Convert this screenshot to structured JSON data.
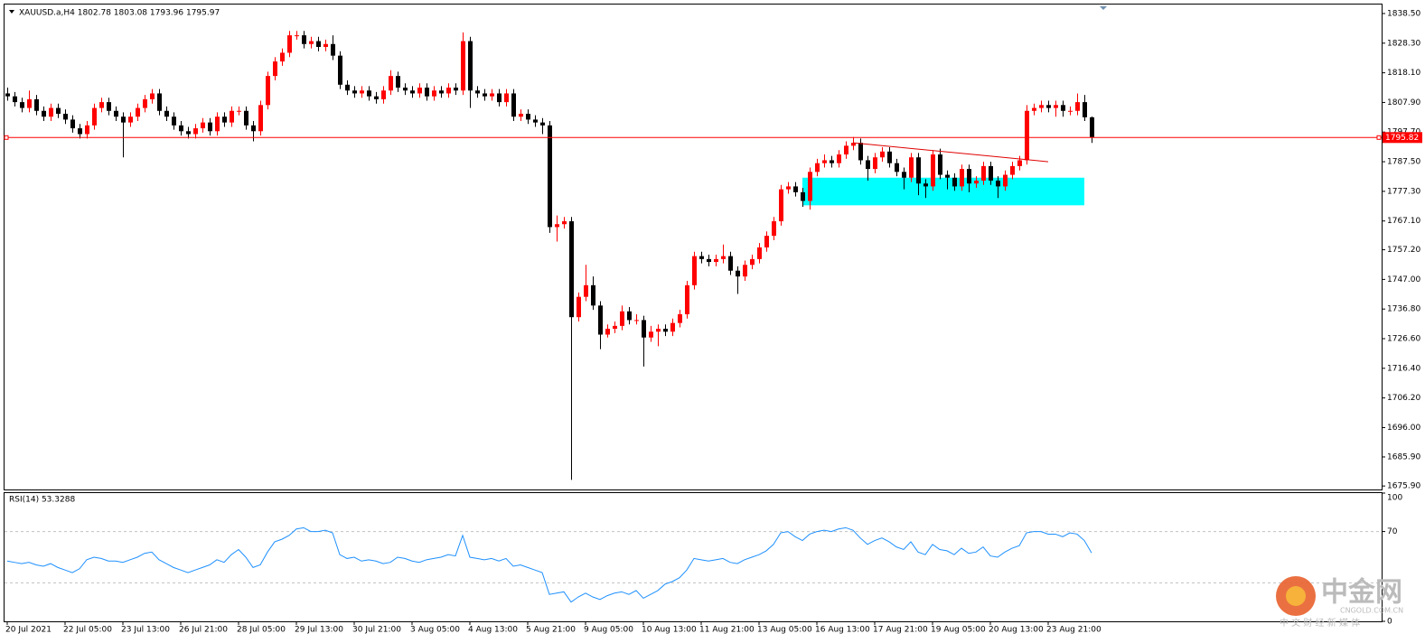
{
  "chart_data": {
    "type": "candlestick",
    "title": "XAUUSD.a,H4  1802.78 1803.08 1793.96 1795.97",
    "up_color": "#ff0000",
    "down_color": "#000000",
    "ylim": [
      1674.7,
      1841.6
    ],
    "yticks": [
      {
        "value": 1838.5,
        "label": "1838.50"
      },
      {
        "value": 1828.3,
        "label": "1828.30"
      },
      {
        "value": 1818.1,
        "label": "1818.10"
      },
      {
        "value": 1807.9,
        "label": "1807.90"
      },
      {
        "value": 1797.7,
        "label": "1797.70"
      },
      {
        "value": 1787.5,
        "label": "1787.50"
      },
      {
        "value": 1777.3,
        "label": "1777.30"
      },
      {
        "value": 1767.1,
        "label": "1767.10"
      },
      {
        "value": 1757.2,
        "label": "1757.20"
      },
      {
        "value": 1747.0,
        "label": "1747.00"
      },
      {
        "value": 1736.8,
        "label": "1736.80"
      },
      {
        "value": 1726.6,
        "label": "1726.60"
      },
      {
        "value": 1716.4,
        "label": "1716.40"
      },
      {
        "value": 1706.2,
        "label": "1706.20"
      },
      {
        "value": 1696.0,
        "label": "1696.00"
      },
      {
        "value": 1685.9,
        "label": "1685.90"
      },
      {
        "value": 1675.9,
        "label": "1675.90"
      }
    ],
    "price_line": {
      "value": 1795.82,
      "label": "1795.82",
      "color": "#ff0000"
    },
    "trendline": {
      "x": [
        117,
        144
      ],
      "y": [
        1794,
        1787.5
      ],
      "color": "#e00000"
    },
    "zone": {
      "x": [
        110,
        149
      ],
      "low": 1772.5,
      "high": 1782,
      "color": "#00ffff"
    },
    "categories": [
      "20 Jul 2021",
      null,
      null,
      null,
      null,
      null,
      null,
      null,
      "22 Jul 05:00",
      null,
      null,
      null,
      null,
      null,
      null,
      null,
      "23 Jul 13:00",
      null,
      null,
      null,
      null,
      null,
      null,
      null,
      "26 Jul 21:00",
      null,
      null,
      null,
      null,
      null,
      null,
      null,
      "28 Jul 05:00",
      null,
      null,
      null,
      null,
      null,
      null,
      null,
      "29 Jul 13:00",
      null,
      null,
      null,
      null,
      null,
      null,
      null,
      "30 Jul 21:00",
      null,
      null,
      null,
      null,
      null,
      null,
      null,
      "3 Aug 05:00",
      null,
      null,
      null,
      null,
      null,
      null,
      null,
      "4 Aug 13:00",
      null,
      null,
      null,
      null,
      null,
      null,
      null,
      "5 Aug 21:00",
      null,
      null,
      null,
      null,
      null,
      null,
      null,
      "9 Aug 05:00",
      null,
      null,
      null,
      null,
      null,
      null,
      null,
      "10 Aug 13:00",
      null,
      null,
      null,
      null,
      null,
      null,
      null,
      "11 Aug 21:00",
      null,
      null,
      null,
      null,
      null,
      null,
      null,
      "13 Aug 05:00",
      null,
      null,
      null,
      null,
      null,
      null,
      null,
      "16 Aug 13:00",
      null,
      null,
      null,
      null,
      null,
      null,
      null,
      "17 Aug 21:00",
      null,
      null,
      null,
      null,
      null,
      null,
      null,
      "19 Aug 05:00",
      null,
      null,
      null,
      null,
      null,
      null,
      null,
      "20 Aug 13:00",
      null,
      null,
      null,
      null,
      null,
      null,
      null,
      "23 Aug 21:00",
      null,
      null,
      null,
      null,
      null,
      null
    ],
    "ohlc": [
      [
        1811,
        1813,
        1808.5,
        1810
      ],
      [
        1810,
        1811.5,
        1806.5,
        1808
      ],
      [
        1808,
        1809.5,
        1804.5,
        1806
      ],
      [
        1806,
        1812,
        1804.5,
        1809
      ],
      [
        1809,
        1810.5,
        1803.5,
        1805
      ],
      [
        1805,
        1806.5,
        1801.5,
        1803
      ],
      [
        1803,
        1807.5,
        1801.5,
        1806
      ],
      [
        1806,
        1807.5,
        1802.5,
        1804
      ],
      [
        1804,
        1805.5,
        1800.5,
        1802
      ],
      [
        1802,
        1803.5,
        1797.5,
        1799
      ],
      [
        1799,
        1800.5,
        1795.5,
        1797
      ],
      [
        1797,
        1801.5,
        1795.5,
        1800
      ],
      [
        1800,
        1807.5,
        1798.5,
        1806
      ],
      [
        1806,
        1809.5,
        1804.5,
        1808
      ],
      [
        1808,
        1809.5,
        1803.5,
        1805
      ],
      [
        1805,
        1806.5,
        1801.5,
        1803
      ],
      [
        1803,
        1804.5,
        1789,
        1801
      ],
      [
        1801,
        1804.5,
        1799.5,
        1803
      ],
      [
        1803,
        1807.5,
        1801.5,
        1806
      ],
      [
        1806,
        1810.5,
        1804.5,
        1809
      ],
      [
        1809,
        1812.5,
        1807.5,
        1811
      ],
      [
        1811,
        1812.5,
        1803.5,
        1805
      ],
      [
        1805,
        1806.5,
        1801.5,
        1803
      ],
      [
        1803,
        1804.5,
        1798.5,
        1800
      ],
      [
        1800,
        1801.5,
        1796.5,
        1798
      ],
      [
        1798,
        1799.5,
        1795.5,
        1797
      ],
      [
        1797,
        1800.5,
        1795.5,
        1799
      ],
      [
        1799,
        1802.5,
        1797.5,
        1801
      ],
      [
        1801,
        1802.5,
        1796.5,
        1798
      ],
      [
        1798,
        1804.5,
        1796.5,
        1803
      ],
      [
        1803,
        1804.5,
        1799.5,
        1801
      ],
      [
        1801,
        1806.5,
        1799.5,
        1805
      ],
      [
        1805,
        1806.5,
        1803.5,
        1805
      ],
      [
        1805,
        1806.5,
        1798.5,
        1800
      ],
      [
        1800,
        1801.5,
        1794.5,
        1798
      ],
      [
        1798,
        1808.5,
        1796.5,
        1807
      ],
      [
        1807,
        1818.5,
        1805.5,
        1817
      ],
      [
        1817,
        1823.5,
        1815.5,
        1822
      ],
      [
        1822,
        1826.5,
        1820.5,
        1825
      ],
      [
        1825,
        1832.5,
        1823.5,
        1831
      ],
      [
        1831,
        1832.5,
        1829.5,
        1831
      ],
      [
        1831,
        1832.5,
        1826.5,
        1828
      ],
      [
        1828,
        1830.5,
        1826.5,
        1829
      ],
      [
        1829,
        1830.5,
        1825.5,
        1827
      ],
      [
        1827,
        1829.5,
        1825.5,
        1828
      ],
      [
        1828,
        1831,
        1822.5,
        1824
      ],
      [
        1824,
        1825.5,
        1812.5,
        1814
      ],
      [
        1814,
        1815.5,
        1810.5,
        1812
      ],
      [
        1812,
        1813.5,
        1809.5,
        1811
      ],
      [
        1811,
        1813.5,
        1809.5,
        1812
      ],
      [
        1812,
        1813.5,
        1808.5,
        1810
      ],
      [
        1810,
        1811.5,
        1807.5,
        1809
      ],
      [
        1809,
        1813.5,
        1807.5,
        1812
      ],
      [
        1812,
        1819,
        1810.5,
        1817
      ],
      [
        1817,
        1818.5,
        1811.5,
        1813
      ],
      [
        1813,
        1814.5,
        1810.5,
        1812
      ],
      [
        1812,
        1813.5,
        1809.5,
        1811
      ],
      [
        1811,
        1814.5,
        1809.5,
        1813
      ],
      [
        1813,
        1814.5,
        1808.5,
        1810
      ],
      [
        1810,
        1813.5,
        1808.5,
        1812
      ],
      [
        1812,
        1813.5,
        1809.5,
        1811
      ],
      [
        1811,
        1814.5,
        1809.5,
        1813
      ],
      [
        1813,
        1814.5,
        1810.5,
        1812
      ],
      [
        1812,
        1832,
        1810.5,
        1829
      ],
      [
        1829,
        1830.5,
        1806,
        1812
      ],
      [
        1812,
        1813.5,
        1809.5,
        1811
      ],
      [
        1811,
        1812.5,
        1808.5,
        1810
      ],
      [
        1810,
        1812.5,
        1808.5,
        1811
      ],
      [
        1811,
        1812.5,
        1806.5,
        1808
      ],
      [
        1808,
        1812.5,
        1806.5,
        1811
      ],
      [
        1811,
        1812.5,
        1801.5,
        1803
      ],
      [
        1803,
        1805.5,
        1801.5,
        1804
      ],
      [
        1804,
        1805.5,
        1800.5,
        1802
      ],
      [
        1802,
        1803.5,
        1799.5,
        1801
      ],
      [
        1801,
        1802.5,
        1797,
        1800
      ],
      [
        1800,
        1801.5,
        1763,
        1765
      ],
      [
        1765,
        1769,
        1760,
        1766
      ],
      [
        1766,
        1768.5,
        1764.5,
        1767
      ],
      [
        1767,
        1768.5,
        1678,
        1734
      ],
      [
        1734,
        1742.5,
        1732.5,
        1741
      ],
      [
        1741,
        1752,
        1739.5,
        1745
      ],
      [
        1745,
        1748,
        1736.5,
        1738
      ],
      [
        1738,
        1739.5,
        1723,
        1728
      ],
      [
        1728,
        1731.5,
        1727,
        1730
      ],
      [
        1730,
        1732.5,
        1728.5,
        1731
      ],
      [
        1731,
        1738,
        1729.5,
        1736
      ],
      [
        1736,
        1737.5,
        1731.5,
        1733
      ],
      [
        1733,
        1735,
        1731.5,
        1733
      ],
      [
        1733,
        1734.5,
        1717,
        1727
      ],
      [
        1727,
        1731,
        1725.5,
        1729
      ],
      [
        1729,
        1731.5,
        1724,
        1730
      ],
      [
        1730,
        1731.5,
        1727.5,
        1729
      ],
      [
        1729,
        1733.5,
        1727.5,
        1732
      ],
      [
        1732,
        1736.5,
        1730.5,
        1735
      ],
      [
        1735,
        1746.5,
        1733.5,
        1745
      ],
      [
        1745,
        1756.5,
        1743.5,
        1755
      ],
      [
        1755,
        1756.5,
        1752.5,
        1754
      ],
      [
        1754,
        1755.5,
        1751.5,
        1753
      ],
      [
        1753,
        1755.5,
        1751.5,
        1754
      ],
      [
        1754,
        1759,
        1752.5,
        1755
      ],
      [
        1755,
        1756.5,
        1748.5,
        1750
      ],
      [
        1750,
        1751.5,
        1742,
        1748
      ],
      [
        1748,
        1753.5,
        1746.5,
        1752
      ],
      [
        1752,
        1755.5,
        1750.5,
        1754
      ],
      [
        1754,
        1759.5,
        1752.5,
        1758
      ],
      [
        1758,
        1763.5,
        1756.5,
        1762
      ],
      [
        1762,
        1768.5,
        1760.5,
        1767
      ],
      [
        1767,
        1779.5,
        1765.5,
        1778
      ],
      [
        1778,
        1780.5,
        1776.5,
        1779
      ],
      [
        1779,
        1780.5,
        1775.5,
        1777
      ],
      [
        1777,
        1778.5,
        1772,
        1774
      ],
      [
        1774,
        1785.5,
        1771,
        1784
      ],
      [
        1784,
        1788.5,
        1782.5,
        1787
      ],
      [
        1787,
        1790,
        1785.5,
        1788
      ],
      [
        1788,
        1789.5,
        1785.5,
        1787
      ],
      [
        1787,
        1791.5,
        1785.5,
        1790
      ],
      [
        1790,
        1794.5,
        1788.5,
        1793
      ],
      [
        1793,
        1796,
        1791.5,
        1794
      ],
      [
        1794,
        1795.5,
        1786.5,
        1788
      ],
      [
        1788,
        1789.5,
        1781,
        1785
      ],
      [
        1785,
        1790.5,
        1783.5,
        1789
      ],
      [
        1789,
        1792.5,
        1787.5,
        1791
      ],
      [
        1791,
        1792.5,
        1785.5,
        1787
      ],
      [
        1787,
        1788.5,
        1782.5,
        1784
      ],
      [
        1784,
        1785.5,
        1778,
        1782
      ],
      [
        1782,
        1790.5,
        1780.5,
        1789
      ],
      [
        1789,
        1790.5,
        1776,
        1780
      ],
      [
        1780,
        1781.5,
        1775,
        1779
      ],
      [
        1779,
        1791.5,
        1777.5,
        1790
      ],
      [
        1790,
        1792,
        1781.5,
        1783
      ],
      [
        1783,
        1784.5,
        1778,
        1782
      ],
      [
        1782,
        1783.5,
        1777.5,
        1779
      ],
      [
        1779,
        1786.5,
        1777.5,
        1785
      ],
      [
        1785,
        1786.5,
        1777,
        1780
      ],
      [
        1780,
        1782.5,
        1778.5,
        1781
      ],
      [
        1781,
        1787.5,
        1779.5,
        1786
      ],
      [
        1786,
        1787.5,
        1779.5,
        1781
      ],
      [
        1781,
        1782.5,
        1775,
        1779
      ],
      [
        1779,
        1784.5,
        1777.5,
        1783
      ],
      [
        1783,
        1787.5,
        1781.5,
        1786
      ],
      [
        1786,
        1789.5,
        1784.5,
        1788
      ],
      [
        1788,
        1807,
        1786.5,
        1805
      ],
      [
        1805,
        1807.5,
        1803.5,
        1806
      ],
      [
        1806,
        1808.5,
        1804.5,
        1807
      ],
      [
        1807,
        1808.5,
        1804.5,
        1806
      ],
      [
        1806,
        1808.5,
        1803,
        1807
      ],
      [
        1807,
        1808.5,
        1803,
        1805
      ],
      [
        1805,
        1806.5,
        1803.5,
        1805
      ],
      [
        1805,
        1811,
        1803.5,
        1808
      ],
      [
        1808,
        1810.5,
        1801.5,
        1802.78
      ],
      [
        1802.78,
        1803.08,
        1793.96,
        1795.97
      ]
    ],
    "rsi": {
      "title": "RSI(14) 53.3288",
      "color": "#1e90ff",
      "ylim": [
        0,
        100
      ],
      "yticks": [
        100,
        70,
        0
      ],
      "levels": [
        70,
        30
      ],
      "values": [
        47,
        46,
        45,
        46,
        44,
        43,
        45,
        42,
        40,
        38,
        41,
        48,
        50,
        49,
        47,
        47,
        46,
        48,
        50,
        53,
        54,
        48,
        45,
        42,
        40,
        38,
        40,
        42,
        44,
        48,
        46,
        52,
        56,
        50,
        42,
        44,
        54,
        62,
        64,
        67,
        72,
        73,
        70,
        70,
        71,
        69,
        52,
        49,
        50,
        47,
        48,
        47,
        45,
        46,
        50,
        49,
        47,
        46,
        48,
        49,
        50,
        52,
        51,
        67,
        50,
        49,
        48,
        49,
        47,
        49,
        43,
        44,
        42,
        40,
        38,
        21,
        22,
        23,
        15,
        19,
        22,
        19,
        17,
        20,
        22,
        23,
        21,
        24,
        18,
        21,
        24,
        29,
        31,
        34,
        40,
        49,
        48,
        47,
        48,
        49,
        46,
        45,
        48,
        50,
        52,
        55,
        60,
        69,
        70,
        66,
        63,
        68,
        70,
        71,
        70,
        72,
        73,
        71,
        65,
        60,
        63,
        65,
        62,
        58,
        56,
        62,
        54,
        52,
        60,
        56,
        55,
        52,
        57,
        53,
        54,
        58,
        51,
        50,
        54,
        57,
        59,
        69,
        70,
        70,
        68,
        68,
        66,
        69,
        68,
        63,
        53.3288
      ]
    },
    "watermark": {
      "name": "中金网",
      "site": "CNGOLD.COM.CN",
      "slogan": "中 文 财 经 新 媒 体"
    }
  }
}
